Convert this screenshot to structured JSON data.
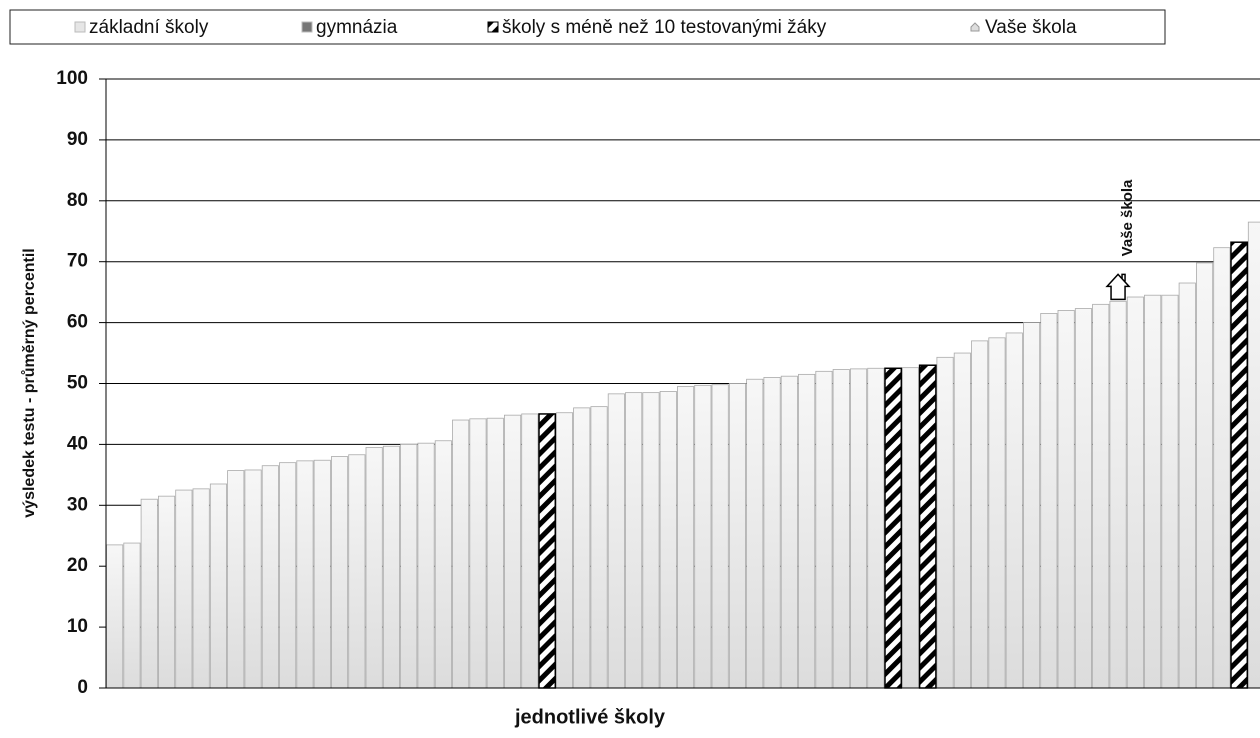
{
  "chart_data": {
    "type": "bar",
    "xlabel": "jednotlivé školy",
    "ylabel": "výsledek testu - průměrný percentil",
    "annotation": "Vaše škola",
    "ylim": [
      0,
      100
    ],
    "yticks": [
      0,
      10,
      20,
      30,
      40,
      50,
      60,
      70,
      80,
      90,
      100
    ],
    "grid": true,
    "categories": [
      null,
      null,
      null,
      null,
      null,
      null,
      null,
      null,
      null,
      null,
      null,
      null,
      null,
      null,
      null,
      null,
      null,
      null,
      null,
      null,
      null,
      null,
      null,
      null,
      null,
      null,
      null,
      null,
      null,
      null,
      null,
      null,
      null,
      null,
      null,
      null,
      null,
      null,
      null,
      null,
      null,
      null,
      null,
      null,
      null,
      null,
      null,
      null,
      null,
      null,
      null,
      null,
      null,
      null,
      null,
      null,
      null,
      null,
      null,
      null,
      null,
      null,
      null,
      null,
      null,
      null,
      null
    ],
    "series": [
      {
        "name": "základní školy",
        "color": "#e6e6e6",
        "values": [
          23.5,
          23.8,
          31,
          31.5,
          32.5,
          32.7,
          33.5,
          35.7,
          35.8,
          36.5,
          37,
          37.3,
          37.4,
          38,
          38.3,
          39.5,
          39.7,
          40,
          40.2,
          40.6,
          44,
          44.2,
          44.3,
          44.8,
          45,
          null,
          45.2,
          46,
          46.2,
          48.3,
          48.5,
          48.5,
          48.7,
          49.5,
          49.7,
          49.8,
          50,
          50.7,
          51,
          51.2,
          51.5,
          52,
          52.3,
          52.4,
          52.5,
          null,
          52.6,
          null,
          54.3,
          55,
          57,
          57.5,
          58.3,
          60,
          61.5,
          62,
          62.3,
          63,
          63.5,
          64.2,
          64.5,
          64.5,
          66.5,
          69.8,
          72.3,
          null,
          76.5
        ]
      },
      {
        "name": "gymnázia",
        "color": "#777777",
        "values": [
          null,
          null,
          null,
          null,
          null,
          null,
          null,
          null,
          null,
          null,
          null,
          null,
          null,
          null,
          null,
          null,
          null,
          null,
          null,
          null,
          null,
          null,
          null,
          null,
          null,
          null,
          null,
          null,
          null,
          null,
          null,
          null,
          null,
          null,
          null,
          null,
          null,
          null,
          null,
          null,
          null,
          null,
          null,
          null,
          null,
          null,
          null,
          null,
          null,
          null,
          null,
          null,
          null,
          null,
          null,
          null,
          null,
          null,
          null,
          null,
          null,
          null,
          null,
          null,
          null,
          null,
          null
        ]
      },
      {
        "name": "školy s méně než 10 testovanými žáky",
        "color": "#000000",
        "hatch": true,
        "values": [
          null,
          null,
          null,
          null,
          null,
          null,
          null,
          null,
          null,
          null,
          null,
          null,
          null,
          null,
          null,
          null,
          null,
          null,
          null,
          null,
          null,
          null,
          null,
          null,
          null,
          45,
          null,
          null,
          null,
          null,
          null,
          null,
          null,
          null,
          null,
          null,
          null,
          null,
          null,
          null,
          null,
          null,
          null,
          null,
          null,
          52.5,
          null,
          53,
          null,
          null,
          null,
          null,
          null,
          null,
          null,
          null,
          null,
          null,
          null,
          null,
          null,
          null,
          null,
          null,
          null,
          73.2,
          null
        ]
      },
      {
        "name": "Vaše škola",
        "color": "#ffffff",
        "marker": "house",
        "values": [
          null,
          null,
          null,
          null,
          null,
          null,
          null,
          null,
          null,
          null,
          null,
          null,
          null,
          null,
          null,
          null,
          null,
          null,
          null,
          null,
          null,
          null,
          null,
          null,
          null,
          null,
          null,
          null,
          null,
          null,
          null,
          null,
          null,
          null,
          null,
          null,
          null,
          null,
          null,
          null,
          null,
          null,
          null,
          null,
          null,
          null,
          null,
          null,
          null,
          null,
          null,
          null,
          null,
          null,
          null,
          null,
          null,
          null,
          63,
          null,
          null,
          null,
          null,
          null,
          null,
          null,
          null
        ]
      }
    ]
  }
}
